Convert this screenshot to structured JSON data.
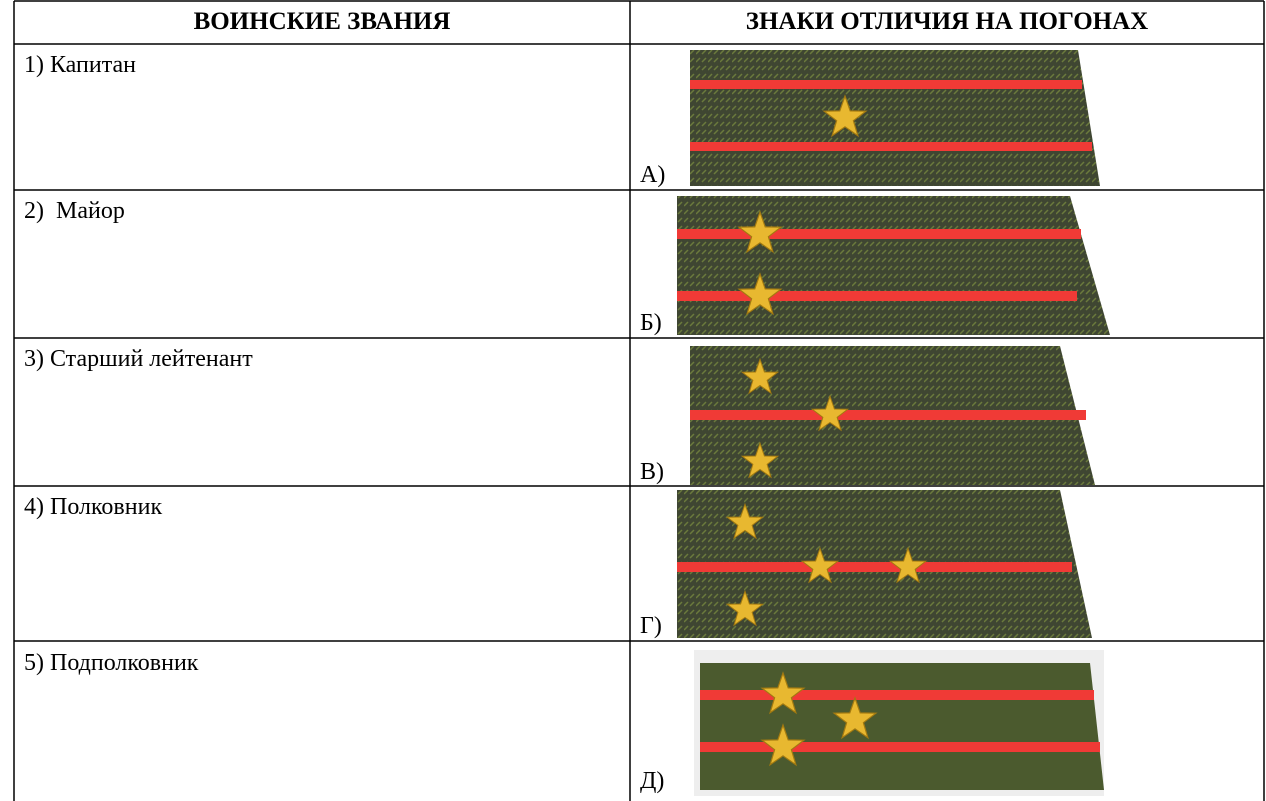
{
  "table": {
    "header": [
      "ВОИНСКИЕ ЗВАНИЯ",
      "ЗНАКИ ОТЛИЧИЯ НА ПОГОНАХ"
    ],
    "rows": [
      [
        "1) Капитан",
        "А)"
      ],
      [
        "2)  Майор",
        "Б)"
      ],
      [
        "3) Старший лейтенант",
        "В)"
      ],
      [
        "4) Полковник",
        "Г)"
      ],
      [
        "5) Подполковник",
        "Д)"
      ]
    ]
  }
}
